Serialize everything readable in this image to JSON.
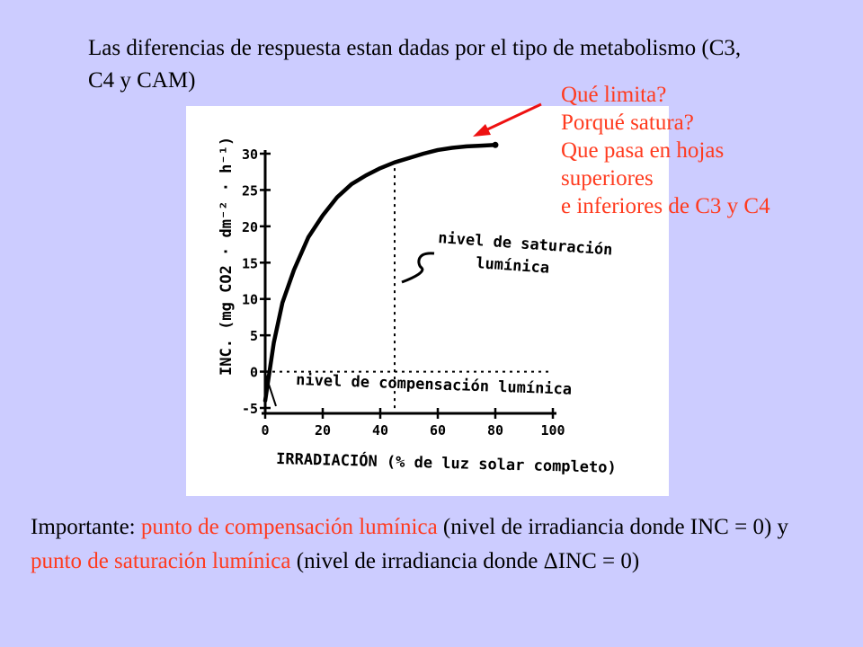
{
  "slide": {
    "title": "Las diferencias de respuesta estan dadas por el tipo de metabolismo  (C3, C4 y CAM)",
    "questions": [
      " Qué limita?",
      "Porqué satura?",
      "Que pasa en hojas",
      "superiores",
      "e inferiores de C3 y C4"
    ],
    "footer": {
      "p1": "Importante: ",
      "p2": "punto de compensación lumínica",
      "p3": " (nivel de irradiancia donde INC = 0) y  ",
      "p4": "punto de saturación lumínica",
      "p5": " (nivel de irradiancia donde ",
      "p6": "Δ",
      "p7": "INC = 0)"
    },
    "colors": {
      "background": "#ccccff",
      "accent": "#ff3b1f",
      "arrow": "#ee1111"
    }
  },
  "chart_data": {
    "type": "line",
    "xlabel": "IRRADIACIÓN (% de luz solar completo)",
    "ylabel": "INC.   (mg CO2 · dm⁻² · h⁻¹)",
    "xlim": [
      0,
      100
    ],
    "ylim": [
      -5,
      30
    ],
    "xticks": [
      "0",
      "20",
      "40",
      "60",
      "80",
      "100"
    ],
    "yticks": [
      "-5",
      "0",
      "5",
      "10",
      "15",
      "20",
      "25",
      "30"
    ],
    "x": [
      0,
      3,
      6,
      10,
      15,
      20,
      25,
      30,
      35,
      40,
      45,
      50,
      55,
      60,
      65,
      70,
      75,
      80
    ],
    "y": [
      -4,
      4,
      9.5,
      14,
      18.5,
      21.5,
      24,
      25.8,
      27,
      28,
      28.8,
      29.4,
      30,
      30.5,
      30.8,
      31,
      31.1,
      31.2
    ],
    "annotations": [
      {
        "text": "nivel de saturación",
        "text2": "lumínica",
        "x": 45,
        "y": 28
      },
      {
        "text": "nivel de compensación lumínica",
        "x": 3,
        "y": 0
      }
    ]
  }
}
